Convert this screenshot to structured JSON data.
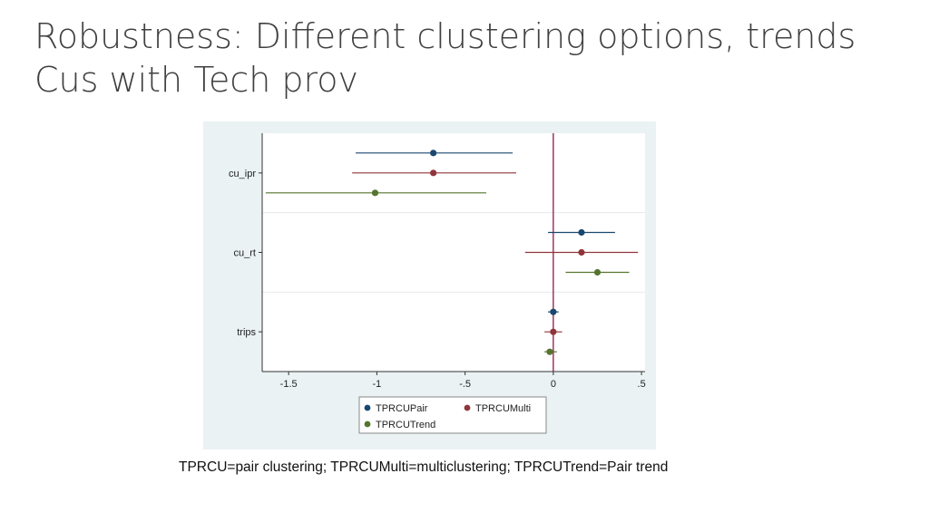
{
  "slide": {
    "title_line1": "Robustness: Different clustering options, trends",
    "title_line2": "Cus with Tech prov",
    "caption": "TPRCU=pair clustering; TPRCUMulti=multiclustering; TPRCUTrend=Pair trend"
  },
  "chart_data": {
    "type": "coefficient_plot",
    "orientation": "horizontal",
    "categories": [
      "cu_ipr",
      "cu_rt",
      "trips"
    ],
    "xlim": [
      -1.65,
      0.52
    ],
    "xticks": [
      -1.5,
      -1,
      -0.5,
      0,
      0.5
    ],
    "xtick_labels": [
      "-1.5",
      "-1",
      "-.5",
      "0",
      ".5"
    ],
    "reference_line_x": 0,
    "grid": true,
    "legend_position": "bottom",
    "colors": {
      "plot_bg": "#ffffff",
      "outer_bg": "#eaf2f3",
      "ref_line": "#8b1a4a"
    },
    "series": [
      {
        "name": "TPRCUPair",
        "color": "#1a476f",
        "points": [
          {
            "category": "cu_ipr",
            "estimate": -0.68,
            "ci_low": -1.12,
            "ci_high": -0.23
          },
          {
            "category": "cu_rt",
            "estimate": 0.16,
            "ci_low": -0.03,
            "ci_high": 0.35
          },
          {
            "category": "trips",
            "estimate": 0.0,
            "ci_low": -0.03,
            "ci_high": 0.03
          }
        ]
      },
      {
        "name": "TPRCUMulti",
        "color": "#90353b",
        "points": [
          {
            "category": "cu_ipr",
            "estimate": -0.68,
            "ci_low": -1.14,
            "ci_high": -0.21
          },
          {
            "category": "cu_rt",
            "estimate": 0.16,
            "ci_low": -0.16,
            "ci_high": 0.48
          },
          {
            "category": "trips",
            "estimate": 0.0,
            "ci_low": -0.05,
            "ci_high": 0.05
          }
        ]
      },
      {
        "name": "TPRCUTrend",
        "color": "#55752f",
        "points": [
          {
            "category": "cu_ipr",
            "estimate": -1.01,
            "ci_low": -1.63,
            "ci_high": -0.38
          },
          {
            "category": "cu_rt",
            "estimate": 0.25,
            "ci_low": 0.07,
            "ci_high": 0.43
          },
          {
            "category": "trips",
            "estimate": -0.02,
            "ci_low": -0.05,
            "ci_high": 0.02
          }
        ]
      }
    ]
  }
}
